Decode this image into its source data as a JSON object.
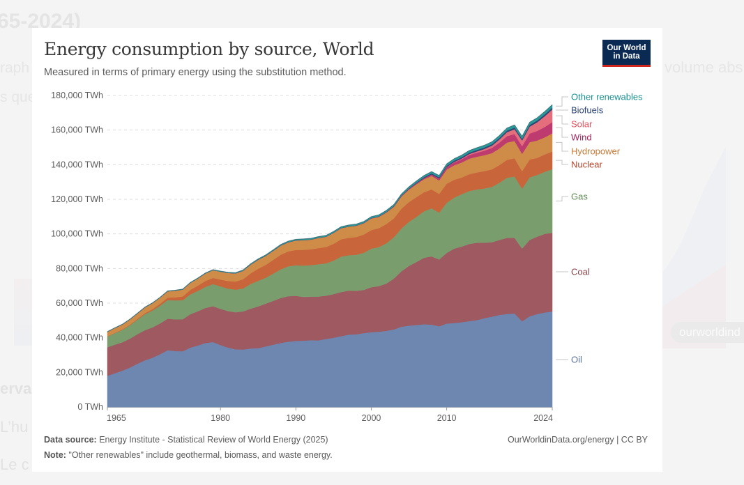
{
  "background": {
    "heading_fragment": "65-2024)",
    "line1_fragment": "raph",
    "line2_fragment": "s que",
    "line3_fragment": "erva",
    "line4_fragment": "L’hu",
    "line5_fragment": "Le c",
    "right_fragment": "volume abs",
    "pill_text": "ourworldind"
  },
  "card": {
    "title": "Energy consumption by source, World",
    "subtitle": "Measured in terms of primary energy using the substitution method.",
    "logo_line1": "Our World",
    "logo_line2": "in Data",
    "source_label": "Data source:",
    "source_text": " Energy Institute - Statistical Review of World Energy (2025)",
    "note_label": "Note:",
    "note_text": " \"Other renewables\" include geothermal, biomass, and waste energy.",
    "attribution": "OurWorldinData.org/energy | CC BY"
  },
  "chart_data": {
    "type": "area",
    "stacked": true,
    "title": "Energy consumption by source, World",
    "subtitle": "Measured in terms of primary energy using the substitution method.",
    "xlabel": "",
    "ylabel": "",
    "unit": "TWh",
    "xlim": [
      1965,
      2024
    ],
    "ylim": [
      0,
      180000
    ],
    "grid": true,
    "legend": "right",
    "x_ticks": [
      "1965",
      "1980",
      "1990",
      "2000",
      "2010",
      "2024"
    ],
    "y_ticks": [
      "0 TWh",
      "20,000 TWh",
      "40,000 TWh",
      "60,000 TWh",
      "80,000 TWh",
      "100,000 TWh",
      "120,000 TWh",
      "140,000 TWh",
      "160,000 TWh",
      "180,000 TWh"
    ],
    "y_tick_values": [
      0,
      20000,
      40000,
      60000,
      80000,
      100000,
      120000,
      140000,
      160000,
      180000
    ],
    "x": [
      1965,
      1966,
      1967,
      1968,
      1969,
      1970,
      1971,
      1972,
      1973,
      1974,
      1975,
      1976,
      1977,
      1978,
      1979,
      1980,
      1981,
      1982,
      1983,
      1984,
      1985,
      1986,
      1987,
      1988,
      1989,
      1990,
      1991,
      1992,
      1993,
      1994,
      1995,
      1996,
      1997,
      1998,
      1999,
      2000,
      2001,
      2002,
      2003,
      2004,
      2005,
      2006,
      2007,
      2008,
      2009,
      2010,
      2011,
      2012,
      2013,
      2014,
      2015,
      2016,
      2017,
      2018,
      2019,
      2020,
      2021,
      2022,
      2023,
      2024
    ],
    "series": [
      {
        "name": "Oil",
        "color": "#6d87b0",
        "label_color": "#5a6f9a",
        "values": [
          18000,
          19500,
          21000,
          22800,
          25000,
          27000,
          28500,
          30500,
          32800,
          32300,
          32200,
          34300,
          35500,
          37000,
          37500,
          35800,
          34300,
          33300,
          33200,
          33800,
          34000,
          35000,
          36000,
          37000,
          37700,
          38200,
          38300,
          38600,
          38500,
          39300,
          40000,
          40900,
          41800,
          42000,
          42700,
          43200,
          43500,
          44000,
          44800,
          46400,
          47000,
          47400,
          47800,
          47600,
          46600,
          48200,
          48500,
          49000,
          49600,
          50200,
          51300,
          52200,
          53200,
          53700,
          54000,
          49500,
          52400,
          53700,
          54600,
          55200
        ]
      },
      {
        "name": "Coal",
        "color": "#9e5961",
        "label_color": "#8a4148",
        "values": [
          16500,
          16500,
          16400,
          16700,
          17100,
          17400,
          17500,
          17800,
          18200,
          18300,
          18500,
          19300,
          19800,
          20200,
          20700,
          20900,
          21100,
          21400,
          22000,
          23000,
          24100,
          24700,
          25300,
          26000,
          26300,
          26000,
          25300,
          25100,
          25300,
          25000,
          25200,
          25500,
          25400,
          25100,
          24900,
          26000,
          26300,
          27300,
          29400,
          32000,
          34500,
          36400,
          38400,
          39400,
          38600,
          40800,
          43000,
          43700,
          44600,
          44700,
          43600,
          43000,
          43300,
          44000,
          43700,
          42000,
          44100,
          44700,
          45400,
          45500
        ]
      },
      {
        "name": "Gas",
        "color": "#7a9d6e",
        "label_color": "#5d8753",
        "values": [
          6200,
          6700,
          7200,
          7800,
          8400,
          9300,
          9800,
          10300,
          10800,
          11000,
          11000,
          11500,
          11800,
          12200,
          12800,
          13000,
          13000,
          13100,
          13300,
          14300,
          14800,
          15000,
          15800,
          16600,
          17300,
          17700,
          18100,
          18300,
          18700,
          18700,
          19400,
          20500,
          20500,
          20900,
          21500,
          22300,
          22600,
          23300,
          23900,
          24800,
          25500,
          26100,
          26900,
          27800,
          27100,
          29000,
          29500,
          30300,
          30600,
          30800,
          31400,
          32000,
          33100,
          34800,
          35500,
          34700,
          36200,
          35700,
          35900,
          36700
        ]
      },
      {
        "name": "Nuclear",
        "color": "#c9653a",
        "label_color": "#b5452a",
        "values": [
          100,
          170,
          230,
          300,
          400,
          560,
          780,
          1060,
          1400,
          1730,
          2180,
          2550,
          3000,
          3400,
          3550,
          3920,
          4400,
          4700,
          5300,
          6100,
          7000,
          7400,
          7900,
          8400,
          8600,
          8800,
          9100,
          9100,
          9300,
          9400,
          9700,
          10000,
          10000,
          10200,
          10500,
          10700,
          10900,
          11100,
          10900,
          11400,
          11400,
          11400,
          11000,
          10900,
          10800,
          11000,
          10300,
          9600,
          9700,
          9800,
          10000,
          10100,
          10200,
          10300,
          10500,
          10000,
          10300,
          9800,
          10000,
          10200
        ]
      },
      {
        "name": "Hydropower",
        "color": "#cf8c48",
        "label_color": "#c57a37",
        "values": [
          2600,
          2750,
          2850,
          3000,
          3150,
          3300,
          3450,
          3550,
          3650,
          3900,
          4000,
          4050,
          4150,
          4350,
          4500,
          4600,
          4650,
          4700,
          4900,
          5050,
          5150,
          5200,
          5250,
          5300,
          5300,
          5500,
          5600,
          5600,
          5900,
          5950,
          6300,
          6400,
          6500,
          6500,
          6550,
          6700,
          6550,
          6650,
          6650,
          7000,
          7200,
          7450,
          7500,
          7800,
          7800,
          8200,
          8400,
          8700,
          9000,
          9100,
          9200,
          9400,
          9600,
          10000,
          10000,
          10100,
          10000,
          10100,
          9900,
          10500
        ]
      },
      {
        "name": "Wind",
        "color": "#bd3b6f",
        "label_color": "#a2225b",
        "values": [
          0,
          0,
          0,
          0,
          0,
          0,
          0,
          0,
          0,
          0,
          0,
          0,
          0,
          0,
          0,
          0,
          0,
          0,
          0,
          0,
          0,
          0,
          0,
          0,
          0,
          10,
          20,
          20,
          30,
          30,
          40,
          40,
          60,
          80,
          100,
          110,
          150,
          190,
          250,
          320,
          400,
          500,
          640,
          840,
          1060,
          1300,
          1600,
          1850,
          2100,
          2300,
          2600,
          3000,
          3400,
          3700,
          4000,
          4400,
          5000,
          5500,
          6000,
          6500
        ]
      },
      {
        "name": "Solar",
        "color": "#e56e7c",
        "label_color": "#e0525f",
        "values": [
          0,
          0,
          0,
          0,
          0,
          0,
          0,
          0,
          0,
          0,
          0,
          0,
          0,
          0,
          0,
          0,
          0,
          0,
          0,
          0,
          0,
          0,
          0,
          0,
          0,
          0,
          0,
          0,
          0,
          0,
          0,
          0,
          0,
          0,
          0,
          5,
          5,
          5,
          10,
          10,
          20,
          30,
          40,
          60,
          100,
          170,
          300,
          450,
          600,
          800,
          1000,
          1300,
          1800,
          2300,
          2800,
          3300,
          4000,
          5000,
          6200,
          7300
        ]
      },
      {
        "name": "Biofuels",
        "color": "#2e4575",
        "label_color": "#2e4575",
        "values": [
          0,
          0,
          0,
          0,
          0,
          0,
          0,
          0,
          0,
          0,
          0,
          0,
          0,
          0,
          0,
          0,
          40,
          60,
          80,
          100,
          110,
          120,
          120,
          120,
          120,
          120,
          120,
          120,
          120,
          120,
          130,
          140,
          150,
          160,
          160,
          170,
          180,
          200,
          240,
          280,
          320,
          400,
          500,
          600,
          650,
          700,
          720,
          740,
          770,
          810,
          830,
          850,
          880,
          930,
          980,
          900,
          960,
          1010,
          1070,
          1100
        ]
      },
      {
        "name": "Other renewables",
        "color": "#2a9a98",
        "label_color": "#19908f",
        "values": [
          150,
          160,
          170,
          180,
          190,
          200,
          210,
          220,
          230,
          240,
          250,
          260,
          270,
          290,
          300,
          310,
          330,
          350,
          380,
          400,
          430,
          450,
          480,
          500,
          520,
          560,
          580,
          600,
          620,
          650,
          680,
          700,
          720,
          740,
          760,
          800,
          820,
          850,
          870,
          900,
          930,
          960,
          990,
          1020,
          1060,
          1110,
          1150,
          1200,
          1250,
          1290,
          1320,
          1370,
          1420,
          1460,
          1500,
          1520,
          1560,
          1600,
          1640,
          1680
        ]
      }
    ],
    "legend_labels": [
      "Other renewables",
      "Biofuels",
      "Solar",
      "Wind",
      "Hydropower",
      "Nuclear",
      "Gas",
      "Coal",
      "Oil"
    ]
  }
}
